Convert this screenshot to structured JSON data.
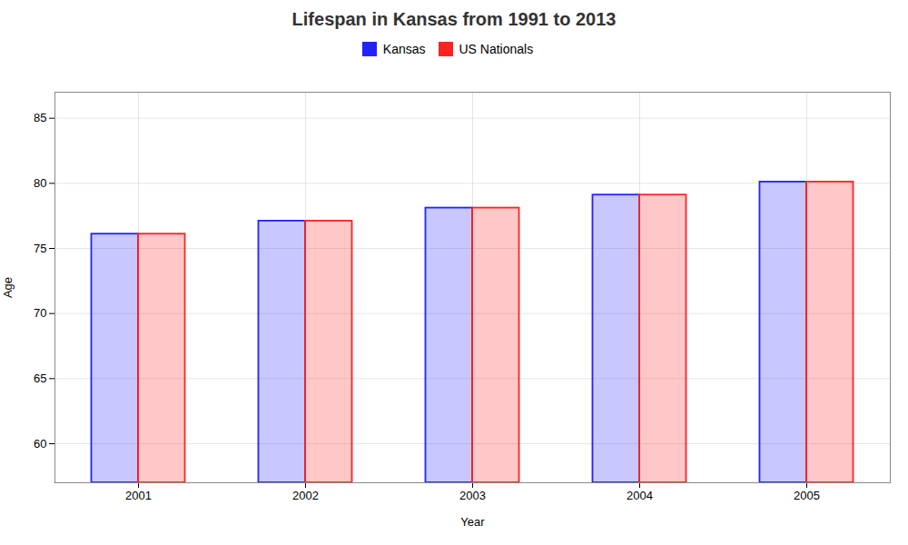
{
  "chart_data": {
    "type": "bar",
    "title": "Lifespan in Kansas from 1991 to 2013",
    "xlabel": "Year",
    "ylabel": "Age",
    "categories": [
      "2001",
      "2002",
      "2003",
      "2004",
      "2005"
    ],
    "series": [
      {
        "name": "Kansas",
        "color": "#2222ff",
        "values": [
          76.1,
          77.1,
          78.1,
          79.1,
          80.1
        ]
      },
      {
        "name": "US Nationals",
        "color": "#ff2222",
        "values": [
          76.1,
          77.1,
          78.1,
          79.1,
          80.1
        ]
      }
    ],
    "ylim": [
      57,
      87
    ],
    "yticks": [
      60,
      65,
      70,
      75,
      80,
      85
    ],
    "grid": true,
    "legend": "top"
  }
}
